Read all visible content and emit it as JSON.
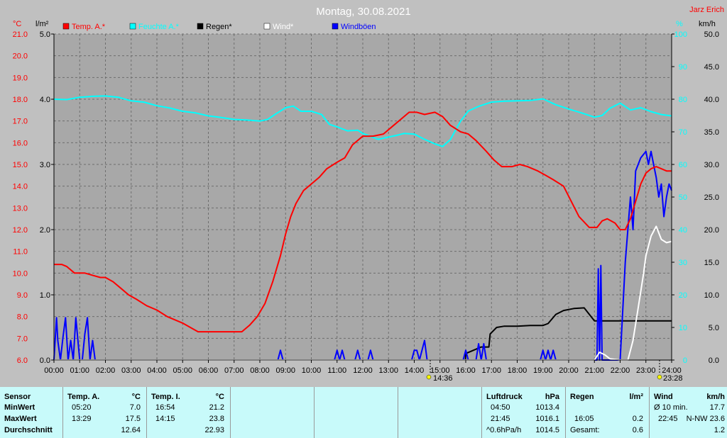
{
  "header": {
    "title": "Montag, 30.08.2021",
    "author": "Jarz Erich"
  },
  "axes": {
    "temp_unit": "°C",
    "rain_unit": "l/m²",
    "hum_unit": "%",
    "wind_unit": "km/h",
    "temp_ticks": [
      "21.0",
      "20.0",
      "19.0",
      "18.0",
      "17.0",
      "16.0",
      "15.0",
      "14.0",
      "13.0",
      "12.0",
      "11.0",
      "10.0",
      "9.0",
      "8.0",
      "7.0",
      "6.0"
    ],
    "rain_ticks": [
      "5.0",
      "4.0",
      "3.0",
      "2.0",
      "1.0",
      "0.0"
    ],
    "hum_ticks": [
      "100",
      "90",
      "80",
      "70",
      "60",
      "50",
      "40",
      "30",
      "20",
      "10",
      "0"
    ],
    "wind_ticks": [
      "50.0",
      "45.0",
      "40.0",
      "35.0",
      "30.0",
      "25.0",
      "20.0",
      "15.0",
      "10.0",
      "5.0",
      "0.0"
    ],
    "time_ticks": [
      "00:00",
      "01:00",
      "02:00",
      "03:00",
      "04:00",
      "05:00",
      "06:00",
      "07:00",
      "08:00",
      "09:00",
      "10:00",
      "11:00",
      "12:00",
      "13:00",
      "14:00",
      "15:00",
      "16:00",
      "17:00",
      "18:00",
      "19:00",
      "20:00",
      "21:00",
      "22:00",
      "23:00",
      "24:00"
    ],
    "sunrise": "14:36",
    "sunset": "23:28"
  },
  "colors": {
    "temp": "#ff0000",
    "humidity": "#00ffff",
    "rain": "#000000",
    "wind": "#ffffff",
    "gust": "#0000ff",
    "plot_bg": "#a8a8a8",
    "grid": "#6e6e6e"
  },
  "chart_data": {
    "type": "line",
    "title": "Montag, 30.08.2021",
    "x_range": [
      "00:00",
      "24:00"
    ],
    "y_ranges": {
      "temp_c": [
        6.0,
        21.0
      ],
      "rain_lm2": [
        0.0,
        5.0
      ],
      "humidity_pct": [
        0,
        100
      ],
      "wind_kmh": [
        0,
        50
      ]
    },
    "grid": true,
    "legend_position": "top",
    "series": [
      {
        "name": "Temp. A.*",
        "color": "#ff0000",
        "axis": "temp_c",
        "x": [
          0.0,
          0.3,
          0.5,
          0.8,
          1.2,
          1.5,
          1.8,
          2.0,
          2.3,
          2.6,
          2.9,
          3.2,
          3.6,
          4.0,
          4.4,
          4.8,
          5.0,
          5.3,
          5.6,
          6.0,
          6.3,
          6.6,
          7.0,
          7.3,
          7.6,
          7.9,
          8.2,
          8.5,
          8.8,
          9.0,
          9.2,
          9.4,
          9.7,
          10.0,
          10.3,
          10.6,
          11.0,
          11.3,
          11.6,
          12.0,
          12.4,
          12.8,
          13.2,
          13.5,
          13.8,
          14.1,
          14.4,
          14.8,
          15.1,
          15.4,
          15.8,
          16.1,
          16.4,
          16.8,
          17.1,
          17.4,
          17.8,
          18.1,
          18.4,
          18.8,
          19.1,
          19.4,
          19.8,
          20.1,
          20.4,
          20.8,
          21.1,
          21.3,
          21.5,
          21.8,
          22.0,
          22.2,
          22.4,
          22.6,
          22.8,
          23.0,
          23.2,
          23.4,
          23.6,
          23.8,
          24.0
        ],
        "values": [
          10.4,
          10.4,
          10.3,
          10.0,
          10.0,
          9.9,
          9.8,
          9.8,
          9.6,
          9.3,
          9.0,
          8.8,
          8.5,
          8.3,
          8.0,
          7.8,
          7.7,
          7.5,
          7.3,
          7.3,
          7.3,
          7.3,
          7.3,
          7.3,
          7.6,
          8.0,
          8.6,
          9.6,
          10.8,
          11.8,
          12.6,
          13.2,
          13.8,
          14.1,
          14.4,
          14.8,
          15.1,
          15.3,
          15.9,
          16.3,
          16.3,
          16.4,
          16.8,
          17.1,
          17.4,
          17.4,
          17.3,
          17.4,
          17.2,
          16.8,
          16.5,
          16.4,
          16.1,
          15.6,
          15.2,
          14.9,
          14.9,
          15.0,
          14.9,
          14.7,
          14.5,
          14.3,
          14.0,
          13.3,
          12.6,
          12.1,
          12.1,
          12.4,
          12.5,
          12.3,
          12.0,
          12.0,
          12.5,
          13.3,
          14.1,
          14.6,
          14.8,
          14.9,
          14.8,
          14.7,
          14.7
        ]
      },
      {
        "name": "Feuchte A.*",
        "color": "#00ffff",
        "axis": "humidity_pct",
        "x": [
          0.0,
          0.5,
          1.0,
          1.5,
          2.0,
          2.5,
          3.0,
          3.5,
          4.0,
          4.5,
          5.0,
          5.5,
          6.0,
          6.5,
          7.0,
          7.5,
          8.0,
          8.3,
          8.6,
          9.0,
          9.3,
          9.6,
          10.0,
          10.4,
          10.7,
          11.0,
          11.4,
          11.8,
          12.0,
          12.3,
          12.6,
          13.0,
          13.3,
          13.6,
          14.0,
          14.4,
          14.8,
          15.1,
          15.4,
          15.8,
          16.1,
          16.5,
          17.0,
          17.5,
          18.0,
          18.5,
          19.0,
          19.5,
          20.0,
          20.5,
          21.0,
          21.3,
          21.6,
          22.0,
          22.4,
          22.8,
          23.2,
          23.6,
          24.0
        ],
        "values": [
          80.0,
          79.9,
          80.6,
          80.9,
          81.0,
          80.6,
          79.5,
          79.1,
          78.0,
          77.3,
          76.3,
          75.8,
          74.9,
          74.4,
          73.8,
          73.6,
          73.3,
          73.8,
          75.4,
          77.4,
          77.9,
          76.3,
          76.3,
          75.3,
          72.3,
          71.5,
          70.3,
          70.5,
          69.5,
          68.6,
          67.7,
          68.4,
          68.9,
          69.5,
          69.3,
          67.7,
          66.3,
          65.5,
          67.6,
          73.3,
          76.4,
          77.8,
          79.1,
          79.4,
          79.5,
          79.6,
          80.1,
          78.3,
          77.0,
          75.8,
          74.5,
          75.0,
          77.2,
          78.8,
          76.7,
          77.4,
          76.2,
          75.3,
          74.9
        ]
      },
      {
        "name": "Regen*",
        "color": "#000000",
        "axis": "rain_lm2",
        "x": [
          0.0,
          15.99,
          16.0,
          16.3,
          16.6,
          16.9,
          16.95,
          17.2,
          17.5,
          18.0,
          18.5,
          19.0,
          19.2,
          19.5,
          19.8,
          20.2,
          20.6,
          21.0,
          22.0,
          23.0,
          24.0
        ],
        "values": [
          0.0,
          0.0,
          0.1,
          0.15,
          0.2,
          0.2,
          0.4,
          0.5,
          0.52,
          0.52,
          0.53,
          0.53,
          0.56,
          0.7,
          0.76,
          0.79,
          0.8,
          0.6,
          0.6,
          0.6,
          0.6
        ]
      },
      {
        "name": "Wind*",
        "color": "#ffffff",
        "axis": "wind_kmh",
        "x": [
          0.0,
          21.0,
          21.2,
          21.4,
          21.6,
          22.0,
          22.3,
          22.5,
          22.7,
          22.9,
          23.0,
          23.2,
          23.4,
          23.6,
          23.8,
          24.0
        ],
        "values": [
          0.0,
          0.0,
          1.2,
          0.8,
          0.2,
          0.0,
          0.0,
          3.0,
          8.0,
          13.0,
          16.0,
          19.0,
          20.5,
          18.5,
          18.0,
          18.2
        ]
      },
      {
        "name": "Windböen",
        "color": "#0000ff",
        "axis": "wind_kmh",
        "x": [
          0.0,
          0.1,
          0.15,
          0.25,
          0.35,
          0.45,
          0.55,
          0.65,
          0.75,
          0.85,
          1.0,
          1.1,
          1.2,
          1.3,
          1.4,
          1.5,
          1.6,
          1.7,
          1.8,
          1.9,
          2.0,
          2.1,
          2.2,
          8.7,
          8.8,
          8.9,
          10.9,
          11.0,
          11.1,
          11.2,
          11.3,
          11.4,
          11.7,
          11.8,
          11.9,
          12.2,
          12.3,
          12.4,
          13.9,
          14.0,
          14.1,
          14.2,
          14.3,
          14.4,
          14.5,
          14.6,
          14.7,
          15.9,
          16.0,
          16.1,
          16.4,
          16.5,
          16.6,
          16.7,
          16.8,
          18.9,
          19.0,
          19.1,
          19.2,
          19.3,
          19.4,
          19.5,
          19.6,
          21.1,
          21.15,
          21.2,
          21.25,
          21.3,
          21.35,
          21.4,
          21.5,
          21.6,
          22.0,
          22.2,
          22.4,
          22.5,
          22.6,
          22.8,
          23.0,
          23.1,
          23.2,
          23.3,
          23.4,
          23.5,
          23.6,
          23.7,
          23.8,
          23.9,
          24.0
        ],
        "values": [
          0,
          6.5,
          3,
          0,
          3.5,
          6.5,
          0,
          3,
          0,
          6.5,
          0,
          0,
          4,
          6.5,
          0,
          3,
          0,
          0,
          0,
          0,
          0,
          0,
          0,
          0,
          1.5,
          0,
          0,
          1.5,
          0,
          1.5,
          0,
          0,
          0,
          1.5,
          0,
          0,
          1.5,
          0,
          0,
          1.5,
          1.5,
          0,
          1.5,
          3,
          0,
          0,
          0,
          0,
          1.5,
          0,
          0,
          2.5,
          0,
          2.5,
          0,
          0,
          1.5,
          0,
          1.5,
          0,
          1.5,
          0,
          0,
          0,
          14,
          0,
          14.5,
          0,
          0,
          0,
          0,
          0,
          0,
          15,
          25,
          20,
          29,
          31,
          32,
          30,
          32,
          30,
          28,
          25,
          27,
          22,
          25,
          27,
          26
        ]
      }
    ]
  },
  "table": {
    "sensor_header": "Sensor",
    "min_label": "MinWert",
    "max_label": "MaxWert",
    "avg_label": "Durchschnitt",
    "temp_a": {
      "title": "Temp. A.",
      "unit": "°C",
      "min_time": "05:20",
      "min_val": "7.0",
      "max_time": "13:29",
      "max_val": "17.5",
      "avg": "12.64"
    },
    "temp_i": {
      "title": "Temp. I.",
      "unit": "°C",
      "min_time": "16:54",
      "min_val": "21.2",
      "max_time": "14:15",
      "max_val": "23.8",
      "avg": "22.93"
    },
    "pressure": {
      "title": "Luftdruck",
      "unit": "hPa",
      "min_time": "04:50",
      "min_val": "1013.4",
      "max_time": "21:45",
      "max_val": "1016.1",
      "trend_label": "^0.6hPa/h",
      "trend_val": "1014.5"
    },
    "rain": {
      "title": "Regen",
      "unit": "l/m²",
      "time": "16:05",
      "val": "0.2",
      "total_label": "Gesamt:",
      "total": "0.6"
    },
    "wind": {
      "title": "Wind",
      "unit": "km/h",
      "avg_label": "Ø 10 min.",
      "avg_val": "17.7",
      "max_time": "22:45",
      "max_val": "N-NW 23.6",
      "last": "1.2"
    }
  }
}
